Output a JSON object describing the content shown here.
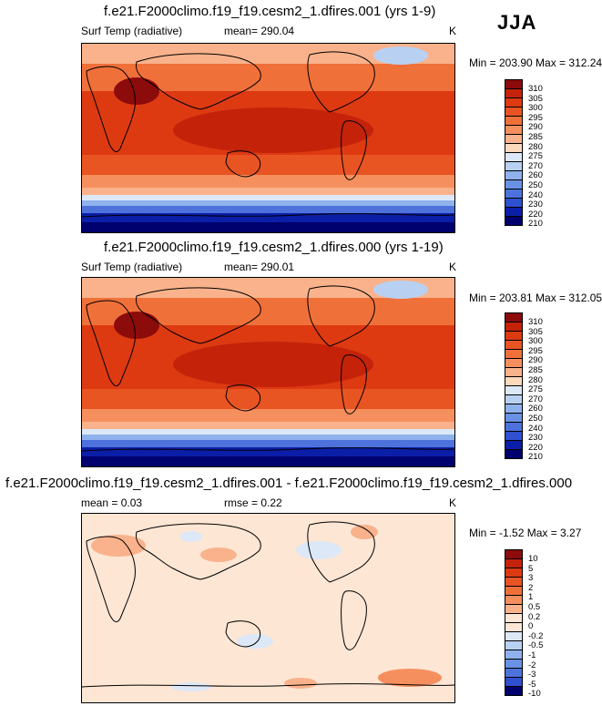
{
  "season": "JJA",
  "panels": [
    {
      "id": "p1",
      "title": "f.e21.F2000climo.f19_f19.cesm2_1.dfires.001 (yrs 1-9)",
      "left_label": "Surf Temp (radiative)",
      "center_label": "mean= 290.04",
      "units": "K",
      "minmax": "Min = 203.90 Max = 312.24",
      "levels": [
        "310",
        "305",
        "300",
        "295",
        "290",
        "285",
        "280",
        "275",
        "270",
        "260",
        "250",
        "240",
        "230",
        "220",
        "210"
      ],
      "colors": [
        "#8c0b0b",
        "#c4230a",
        "#dd3a12",
        "#e95423",
        "#f0703a",
        "#f68f5e",
        "#f9b28b",
        "#fcd8bc",
        "#dce8f7",
        "#b8d1f3",
        "#8fb2ed",
        "#6a91e3",
        "#4d72dc",
        "#2f50d0",
        "#0b1ea8",
        "#00006e"
      ]
    },
    {
      "id": "p2",
      "title": "f.e21.F2000climo.f19_f19.cesm2_1.dfires.000 (yrs 1-19)",
      "left_label": "Surf Temp (radiative)",
      "center_label": "mean= 290.01",
      "units": "K",
      "minmax": "Min = 203.81 Max = 312.05",
      "levels": [
        "310",
        "305",
        "300",
        "295",
        "290",
        "285",
        "280",
        "275",
        "270",
        "260",
        "250",
        "240",
        "230",
        "220",
        "210"
      ],
      "colors": [
        "#8c0b0b",
        "#c4230a",
        "#dd3a12",
        "#e95423",
        "#f0703a",
        "#f68f5e",
        "#f9b28b",
        "#fcd8bc",
        "#dce8f7",
        "#b8d1f3",
        "#8fb2ed",
        "#6a91e3",
        "#4d72dc",
        "#2f50d0",
        "#0b1ea8",
        "#00006e"
      ]
    },
    {
      "id": "p3",
      "title": "f.e21.F2000climo.f19_f19.cesm2_1.dfires.001 - f.e21.F2000climo.f19_f19.cesm2_1.dfires.000",
      "left_label": "mean =   0.03",
      "center_label": "rmse =   0.22",
      "units": "K",
      "minmax": "Min =  -1.52 Max =   3.27",
      "levels": [
        "10",
        "5",
        "3",
        "2",
        "1",
        "0.5",
        "0.2",
        "0",
        "-0.2",
        "-0.5",
        "-1",
        "-2",
        "-3",
        "-5",
        "-10"
      ],
      "colors": [
        "#8c0b0b",
        "#c4230a",
        "#dd3a12",
        "#e95423",
        "#f0703a",
        "#f68f5e",
        "#f9b28b",
        "#fde6d4",
        "#fde6d4",
        "#dce8f7",
        "#b8d1f3",
        "#8fb2ed",
        "#6a91e3",
        "#4d72dc",
        "#2f50d0",
        "#00006e"
      ]
    }
  ]
}
